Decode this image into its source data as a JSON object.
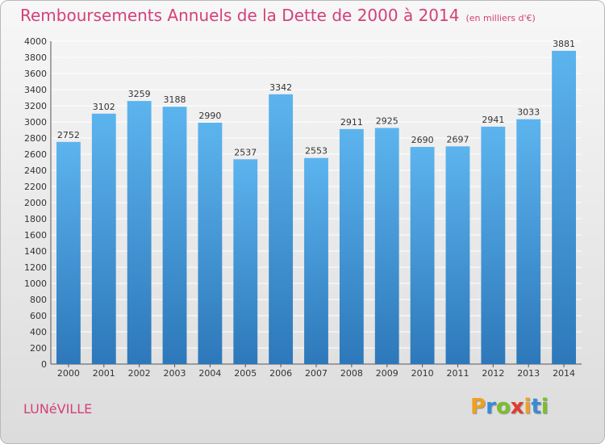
{
  "header": {
    "title": "Remboursements Annuels de la Dette de 2000 à 2014",
    "units": "(en milliers d'€)"
  },
  "footer": {
    "city": "LUNéVILLE",
    "logo_letters": [
      "P",
      "r",
      "o",
      "x",
      "i",
      "t",
      "i"
    ],
    "logo_colors": [
      "#f0a020",
      "#3a8ad8",
      "#7bbf2a",
      "#e23c2c",
      "#f0a020",
      "#3a8ad8",
      "#7bbf2a"
    ]
  },
  "chart_data": {
    "type": "bar",
    "title": "Remboursements Annuels de la Dette de 2000 à 2014",
    "xlabel": "",
    "ylabel": "",
    "categories": [
      "2000",
      "2001",
      "2002",
      "2003",
      "2004",
      "2005",
      "2006",
      "2007",
      "2008",
      "2009",
      "2010",
      "2011",
      "2012",
      "2013",
      "2014"
    ],
    "values": [
      2752,
      3102,
      3259,
      3188,
      2990,
      2537,
      3342,
      2553,
      2911,
      2925,
      2690,
      2697,
      2941,
      3033,
      3881
    ],
    "ylim": [
      0,
      4000
    ],
    "yticks": [
      0,
      200,
      400,
      600,
      800,
      1000,
      1200,
      1400,
      1600,
      1800,
      2000,
      2200,
      2400,
      2600,
      2800,
      3000,
      3200,
      3400,
      3600,
      3800,
      4000
    ],
    "grid": true,
    "bar_color_top": "#5cb4ee",
    "bar_color_bottom": "#2d78ba",
    "grid_color": "#ffffff",
    "text_color": "#333333"
  }
}
